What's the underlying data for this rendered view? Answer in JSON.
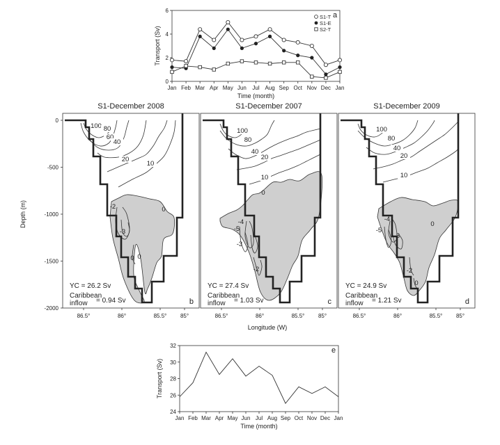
{
  "chart_data": [
    {
      "id": "a",
      "type": "line",
      "panel_label": "a",
      "xlabel": "Time (month)",
      "ylabel": "Transport (Sv)",
      "ylim": [
        0,
        6
      ],
      "yticks": [
        "0",
        "2",
        "4",
        "6"
      ],
      "categories": [
        "Jan",
        "Feb",
        "Mar",
        "Apr",
        "May",
        "Jun",
        "Jul",
        "Aug",
        "Sep",
        "Oct",
        "Nov",
        "Dec",
        "Jan"
      ],
      "legend_position": "top-right",
      "series": [
        {
          "name": "S1-T",
          "marker": "open-circle",
          "values": [
            1.8,
            1.7,
            4.4,
            3.5,
            5.0,
            3.5,
            3.8,
            4.4,
            3.5,
            3.3,
            3.0,
            1.4,
            1.8
          ]
        },
        {
          "name": "S1-E",
          "marker": "filled-circle",
          "values": [
            1.2,
            1.1,
            3.8,
            2.8,
            4.4,
            2.8,
            3.2,
            3.8,
            2.6,
            2.2,
            2.0,
            0.6,
            1.2
          ]
        },
        {
          "name": "S2-T",
          "marker": "open-square",
          "values": [
            0.8,
            1.3,
            1.2,
            1.0,
            1.5,
            1.7,
            1.6,
            1.5,
            1.6,
            1.6,
            0.4,
            0.3,
            0.8
          ]
        }
      ]
    },
    {
      "id": "sections",
      "type": "contour",
      "ylabel": "Depth (m)",
      "xlabel": "Longitude (W)",
      "ylim": [
        -2000,
        0
      ],
      "yticks": [
        "0",
        "-500",
        "-1000",
        "-1500",
        "-2000"
      ],
      "xlim": [
        86.75,
        84.9
      ],
      "xticks": [
        "86.5°",
        "86°",
        "85.5°",
        "85°"
      ],
      "panels": [
        {
          "id": "b",
          "title": "S1-December 2008",
          "panel_label": "b",
          "yc": "YC = 26.2 Sv",
          "carib_label": "Caribbean\ninflow",
          "carib_value": "= 0.94 Sv",
          "labels": [
            "100",
            "80",
            "60",
            "40",
            "20",
            "10",
            "0",
            "-2",
            "-3",
            "0"
          ]
        },
        {
          "id": "c",
          "title": "S1-December 2007",
          "panel_label": "c",
          "yc": "YC = 27.4 Sv",
          "carib_label": "Caribbean\ninflow",
          "carib_value": "= 1.03 Sv",
          "labels": [
            "100",
            "80",
            "40",
            "20",
            "10",
            "0",
            "-4",
            "-5",
            "-3",
            "-2"
          ]
        },
        {
          "id": "d",
          "title": "S1-December 2009",
          "panel_label": "d",
          "yc": "YC = 24.9 Sv",
          "carib_label": "Caribbean\ninflow",
          "carib_value": "= 1.21 Sv",
          "labels": [
            "100",
            "80",
            "40",
            "20",
            "10",
            "0",
            "-4",
            "-5",
            "-3",
            "-2",
            "0"
          ]
        }
      ]
    },
    {
      "id": "e",
      "type": "line",
      "panel_label": "e",
      "xlabel": "Time (month)",
      "ylabel": "Transport (Sv)",
      "ylim": [
        24,
        32
      ],
      "yticks": [
        "24",
        "26",
        "28",
        "30",
        "32"
      ],
      "categories": [
        "Jan",
        "Feb",
        "Mar",
        "Apr",
        "May",
        "Jun",
        "Jul",
        "Aug",
        "Sep",
        "Oct",
        "Nov",
        "Dec",
        "Jan"
      ],
      "series": [
        {
          "name": "YC",
          "values": [
            25.8,
            27.5,
            31.2,
            28.5,
            30.4,
            28.3,
            29.5,
            28.4,
            25.0,
            27.0,
            26.2,
            27.0,
            25.8
          ]
        }
      ]
    }
  ]
}
